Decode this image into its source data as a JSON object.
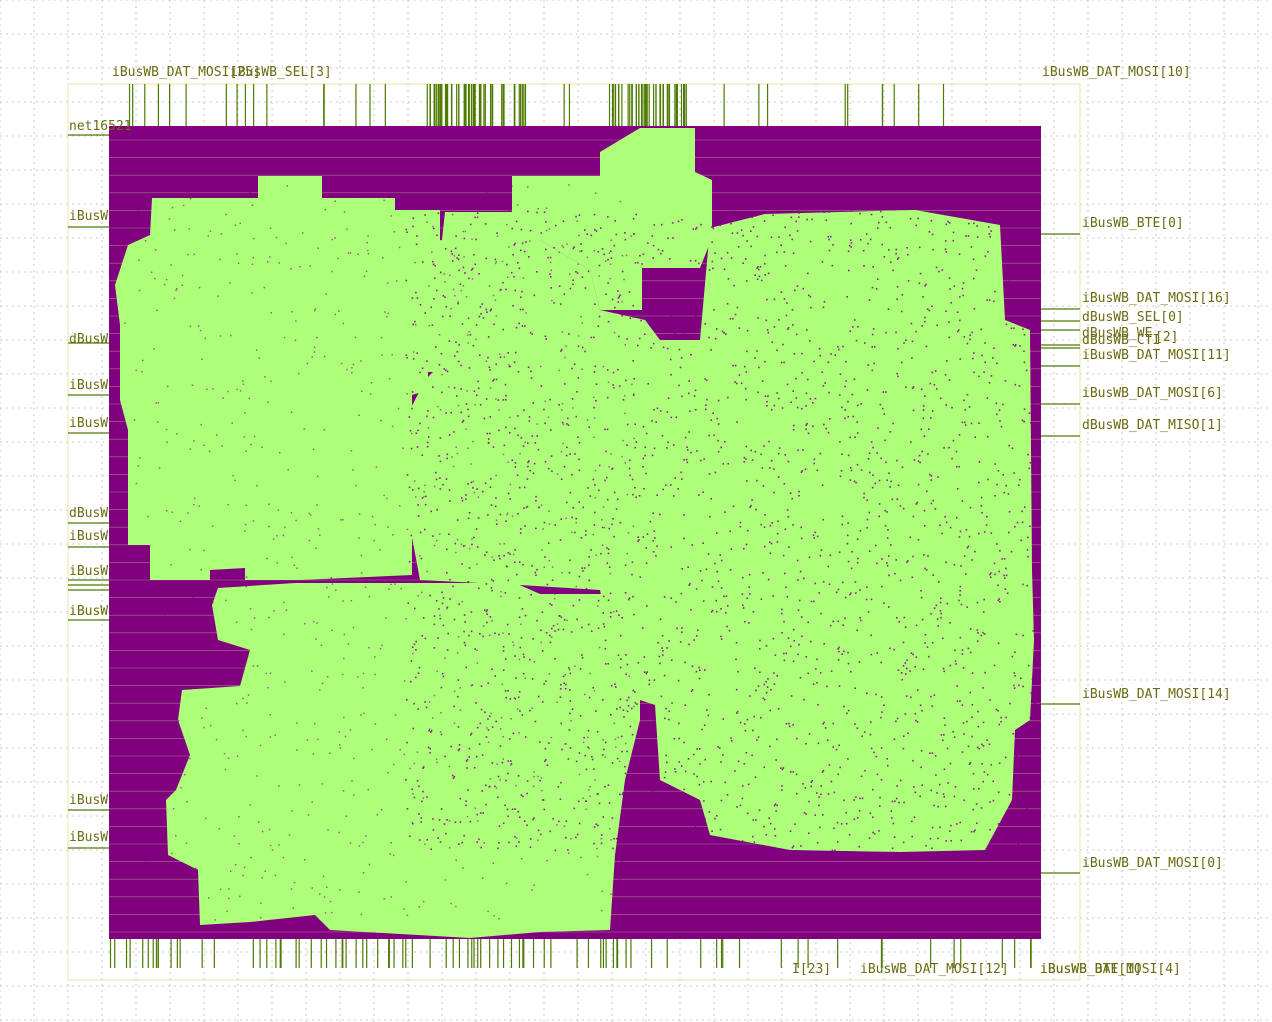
{
  "colors": {
    "background": "#ffffff",
    "grid_dots": "#c8c8c8",
    "die_outline": "#e6e6a8",
    "core_fill": "#800080",
    "cell_fill": "#adff7a",
    "pin_wire": "#4d7a00",
    "label_text": "#6b6b12",
    "row_line": "#c8d890"
  },
  "labels": {
    "top_left_a": "iBusWB_DAT_MOSI[25]",
    "top_left_b": "iBusWB_SEL[3]",
    "top_right_a": "iBusWB_DAT_MOSI[10]",
    "left_net": "net16521",
    "left_1": "iBusW",
    "left_2": "dBusW",
    "left_3": "iBusW",
    "left_4": "iBusW",
    "left_5": "dBusW",
    "left_6": "iBusW",
    "left_7": "iBusW",
    "left_8": "iBusW",
    "left_9": "iBusW",
    "left_10": "iBusW",
    "right_1": "iBusWB_BTE[0]",
    "right_2": "iBusWB_DAT_MOSI[16]",
    "right_3": "dBusWB_SEL[0]",
    "right_4": "dBusWB_WE",
    "right_5": "[2]",
    "right_6": "dBusWB_CTI",
    "right_7": "iBusWB_DAT_MOSI[11]",
    "right_8": "iBusWB_DAT_MOSI[6]",
    "right_9": "dBusWB_DAT_MISO[1]",
    "right_10": "iBusWB_DAT_MOSI[14]",
    "right_11": "iBusWB_DAT_MOSI[0]",
    "bottom_a": "I[23]",
    "bottom_b": "iBusWB_DAT_MOSI[12]",
    "bottom_c": "iBusWB_DAT_MOSI[4]",
    "bottom_d": "iBusWB_BTE[1]"
  }
}
